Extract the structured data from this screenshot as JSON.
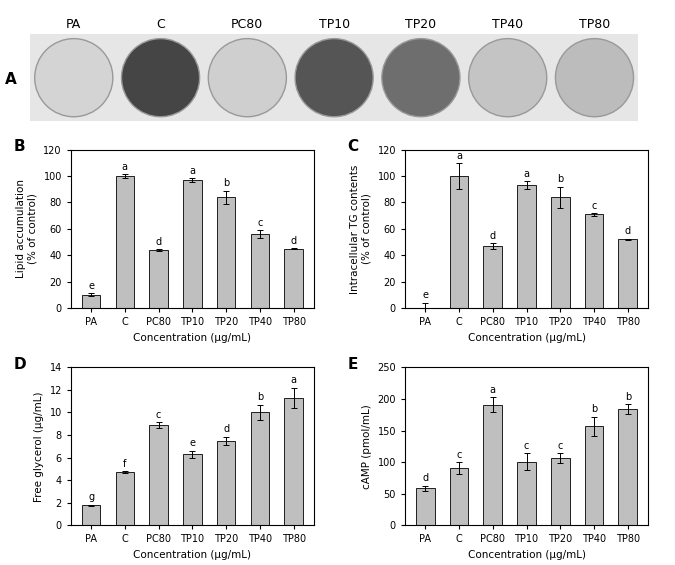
{
  "image_panel": {
    "panel_label": "A",
    "wells": [
      "PA",
      "C",
      "PC80",
      "TP10",
      "TP20",
      "TP40",
      "TP80"
    ],
    "colors": [
      "#d4d4d4",
      "#454545",
      "#cfcfcf",
      "#555555",
      "#6e6e6e",
      "#c4c4c4",
      "#bcbcbc"
    ]
  },
  "chart_data": [
    {
      "type": "bar",
      "panel_label": "B",
      "categories": [
        "PA",
        "C",
        "PC80",
        "TP10",
        "TP20",
        "TP40",
        "TP80"
      ],
      "values": [
        10,
        100,
        44,
        97,
        84,
        56,
        45
      ],
      "errors": [
        1,
        1.5,
        0.5,
        1.5,
        5,
        3,
        0.5
      ],
      "letters": [
        "e",
        "a",
        "d",
        "a",
        "b",
        "c",
        "d"
      ],
      "x_label": "Concentration (µg/mL)",
      "y_label": "Lipid accumulation\n(% of control)",
      "ylim": [
        0,
        120
      ],
      "yticks": [
        0,
        20,
        40,
        60,
        80,
        100,
        120
      ],
      "color": "#bfbfbf"
    },
    {
      "type": "bar",
      "panel_label": "C",
      "categories": [
        "PA",
        "C",
        "PC80",
        "TP10",
        "TP20",
        "TP40",
        "TP80"
      ],
      "values": [
        0,
        100,
        47,
        93,
        84,
        71,
        52
      ],
      "errors": [
        4,
        10,
        2,
        3,
        8,
        1,
        0.5
      ],
      "letters": [
        "e",
        "a",
        "d",
        "a",
        "b",
        "c",
        "d"
      ],
      "x_label": "Concentration (µg/mL)",
      "y_label": "Intracellular TG contents\n(% of control)",
      "ylim": [
        0,
        120
      ],
      "yticks": [
        0,
        20,
        40,
        60,
        80,
        100,
        120
      ],
      "color": "#bfbfbf"
    },
    {
      "type": "bar",
      "panel_label": "D",
      "categories": [
        "PA",
        "C",
        "PC80",
        "TP10",
        "TP20",
        "TP40",
        "TP80"
      ],
      "values": [
        1.8,
        4.7,
        8.9,
        6.3,
        7.5,
        10.0,
        11.3
      ],
      "errors": [
        0.05,
        0.1,
        0.25,
        0.3,
        0.35,
        0.7,
        0.9
      ],
      "letters": [
        "g",
        "f",
        "c",
        "e",
        "d",
        "b",
        "a"
      ],
      "x_label": "Concentration (µg/mL)",
      "y_label": "Free glycerol (µg/mL)",
      "ylim": [
        0,
        14
      ],
      "yticks": [
        0,
        2,
        4,
        6,
        8,
        10,
        12,
        14
      ],
      "color": "#bfbfbf"
    },
    {
      "type": "bar",
      "panel_label": "E",
      "categories": [
        "PA",
        "C",
        "PC80",
        "TP10",
        "TP20",
        "TP40",
        "TP80"
      ],
      "values": [
        59,
        91,
        191,
        101,
        106,
        157,
        184
      ],
      "errors": [
        4,
        9,
        12,
        13,
        8,
        15,
        8
      ],
      "letters": [
        "d",
        "c",
        "a",
        "c",
        "c",
        "b",
        "b"
      ],
      "x_label": "Concentration (µg/mL)",
      "y_label": "cAMP (pmol/mL)",
      "ylim": [
        0,
        250
      ],
      "yticks": [
        0,
        50,
        100,
        150,
        200,
        250
      ],
      "color": "#bfbfbf"
    }
  ]
}
